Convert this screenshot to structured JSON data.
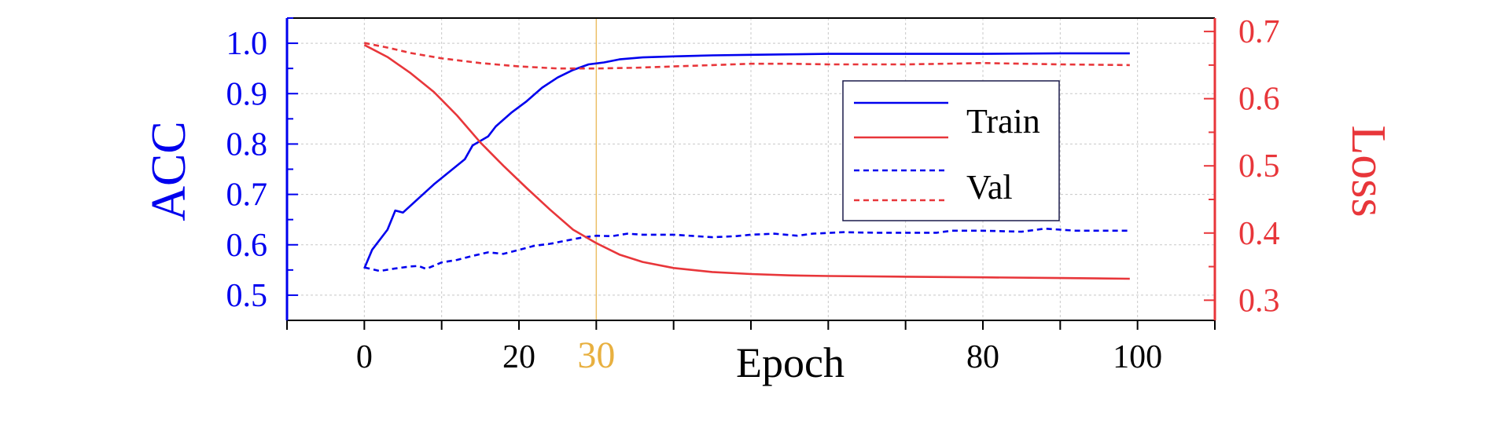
{
  "chart_data": {
    "type": "line",
    "xlabel": "Epoch",
    "ylabel_left": "ACC",
    "ylabel_right": "Loss",
    "xlim": [
      -10,
      110
    ],
    "ylim_left": [
      0.45,
      1.05
    ],
    "ylim_right": [
      0.27,
      0.72
    ],
    "x_ticks": [
      0,
      20,
      30,
      80,
      100
    ],
    "x_ticks_unlabeled": [
      10,
      40,
      50,
      60,
      70,
      90
    ],
    "highlight_x": 30,
    "y_ticks_left": [
      0.5,
      0.6,
      0.7,
      0.8,
      0.9,
      1.0
    ],
    "y_ticks_right": [
      0.3,
      0.4,
      0.5,
      0.6,
      0.7
    ],
    "grid": true,
    "legend_position": "center-right",
    "legend": [
      {
        "label": "Train",
        "style": "solid"
      },
      {
        "label": "Val",
        "style": "dashed"
      }
    ],
    "colors": {
      "acc": "#0000ee",
      "loss": "#e8363a",
      "highlight": "#e8b040",
      "grid": "#c8c8c8",
      "frame": "#000000"
    },
    "series": [
      {
        "axis": "left",
        "color_key": "acc",
        "dash": false,
        "points": [
          [
            0,
            0.553
          ],
          [
            1,
            0.59
          ],
          [
            3,
            0.63
          ],
          [
            4,
            0.668
          ],
          [
            5,
            0.664
          ],
          [
            7,
            0.692
          ],
          [
            9,
            0.72
          ],
          [
            11,
            0.745
          ],
          [
            13,
            0.77
          ],
          [
            14,
            0.797
          ],
          [
            16,
            0.815
          ],
          [
            17,
            0.835
          ],
          [
            19,
            0.862
          ],
          [
            21,
            0.885
          ],
          [
            23,
            0.912
          ],
          [
            25,
            0.932
          ],
          [
            27,
            0.947
          ],
          [
            29,
            0.958
          ],
          [
            31,
            0.962
          ],
          [
            33,
            0.968
          ],
          [
            36,
            0.972
          ],
          [
            40,
            0.974
          ],
          [
            45,
            0.976
          ],
          [
            50,
            0.977
          ],
          [
            55,
            0.978
          ],
          [
            60,
            0.979
          ],
          [
            70,
            0.979
          ],
          [
            80,
            0.979
          ],
          [
            90,
            0.98
          ],
          [
            99,
            0.98
          ]
        ]
      },
      {
        "axis": "left",
        "color_key": "acc",
        "dash": true,
        "points": [
          [
            0,
            0.555
          ],
          [
            2,
            0.548
          ],
          [
            4,
            0.553
          ],
          [
            6,
            0.557
          ],
          [
            7,
            0.558
          ],
          [
            8,
            0.552
          ],
          [
            10,
            0.565
          ],
          [
            12,
            0.57
          ],
          [
            14,
            0.578
          ],
          [
            16,
            0.585
          ],
          [
            18,
            0.582
          ],
          [
            20,
            0.59
          ],
          [
            22,
            0.598
          ],
          [
            24,
            0.602
          ],
          [
            26,
            0.608
          ],
          [
            28,
            0.614
          ],
          [
            30,
            0.618
          ],
          [
            32,
            0.617
          ],
          [
            34,
            0.622
          ],
          [
            36,
            0.62
          ],
          [
            40,
            0.62
          ],
          [
            45,
            0.615
          ],
          [
            48,
            0.617
          ],
          [
            50,
            0.62
          ],
          [
            53,
            0.622
          ],
          [
            56,
            0.618
          ],
          [
            58,
            0.622
          ],
          [
            62,
            0.625
          ],
          [
            66,
            0.624
          ],
          [
            70,
            0.624
          ],
          [
            74,
            0.624
          ],
          [
            76,
            0.628
          ],
          [
            80,
            0.628
          ],
          [
            85,
            0.626
          ],
          [
            88,
            0.632
          ],
          [
            92,
            0.628
          ],
          [
            99,
            0.628
          ]
        ]
      },
      {
        "axis": "right",
        "color_key": "loss",
        "dash": false,
        "points": [
          [
            0,
            0.68
          ],
          [
            3,
            0.662
          ],
          [
            6,
            0.638
          ],
          [
            9,
            0.61
          ],
          [
            12,
            0.575
          ],
          [
            15,
            0.535
          ],
          [
            18,
            0.5
          ],
          [
            21,
            0.467
          ],
          [
            24,
            0.435
          ],
          [
            27,
            0.405
          ],
          [
            30,
            0.385
          ],
          [
            33,
            0.368
          ],
          [
            36,
            0.357
          ],
          [
            40,
            0.348
          ],
          [
            45,
            0.342
          ],
          [
            50,
            0.339
          ],
          [
            55,
            0.337
          ],
          [
            60,
            0.336
          ],
          [
            70,
            0.335
          ],
          [
            80,
            0.334
          ],
          [
            90,
            0.333
          ],
          [
            99,
            0.332
          ]
        ]
      },
      {
        "axis": "right",
        "color_key": "loss",
        "dash": true,
        "points": [
          [
            0,
            0.683
          ],
          [
            3,
            0.676
          ],
          [
            6,
            0.668
          ],
          [
            10,
            0.66
          ],
          [
            15,
            0.653
          ],
          [
            20,
            0.648
          ],
          [
            25,
            0.645
          ],
          [
            30,
            0.645
          ],
          [
            35,
            0.646
          ],
          [
            40,
            0.648
          ],
          [
            45,
            0.65
          ],
          [
            50,
            0.652
          ],
          [
            55,
            0.652
          ],
          [
            60,
            0.651
          ],
          [
            70,
            0.651
          ],
          [
            75,
            0.652
          ],
          [
            80,
            0.653
          ],
          [
            90,
            0.651
          ],
          [
            99,
            0.65
          ]
        ]
      }
    ]
  }
}
